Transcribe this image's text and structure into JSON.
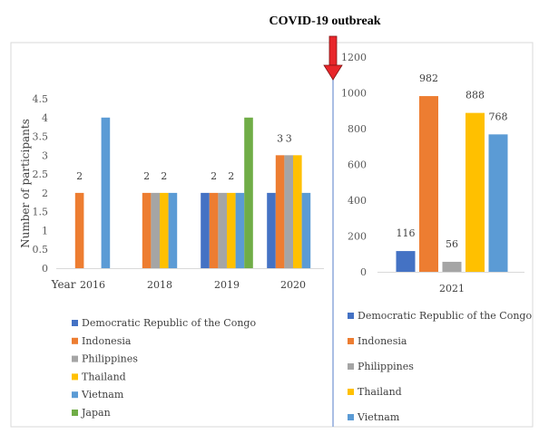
{
  "header": {
    "title": "COVID-19 outbreak"
  },
  "colors": {
    "Democratic Republic of the Congo": "#4472C4",
    "Indonesia": "#ED7D31",
    "Philippines": "#A5A5A5",
    "Thailand": "#FFC000",
    "Vietnam": "#5B9BD5",
    "Japan": "#70AD47",
    "marker": "#E8262A",
    "frame": "#D9D9D9",
    "divider": "#8EA9DB"
  },
  "chart_data": [
    {
      "type": "bar",
      "title": "",
      "xlabel": "Year",
      "ylabel": "Number of participants",
      "categories": [
        "2016",
        "2018",
        "2019",
        "2020"
      ],
      "ylim": [
        0,
        4.5
      ],
      "yticks": [
        "0",
        "0.5",
        "1",
        "1.5",
        "2",
        "2.5",
        "3",
        "3.5",
        "4",
        "4.5"
      ],
      "grid": false,
      "legend": "bottom",
      "series": [
        {
          "name": "Democratic Republic of the Congo",
          "values": [
            null,
            null,
            2,
            2
          ],
          "labels": [
            "",
            "",
            "",
            ""
          ]
        },
        {
          "name": "Indonesia",
          "values": [
            2,
            2,
            2,
            3
          ],
          "labels": [
            "2",
            "2",
            "2",
            "3"
          ]
        },
        {
          "name": "Philippines",
          "values": [
            null,
            2,
            2,
            3
          ],
          "labels": [
            "",
            "",
            "",
            "3"
          ]
        },
        {
          "name": "Thailand",
          "values": [
            null,
            2,
            2,
            3
          ],
          "labels": [
            "",
            "2",
            "2",
            ""
          ]
        },
        {
          "name": "Vietnam",
          "values": [
            4,
            2,
            2,
            2
          ],
          "labels": [
            "",
            "",
            "",
            ""
          ]
        },
        {
          "name": "Japan",
          "values": [
            null,
            null,
            4,
            null
          ],
          "labels": [
            "",
            "",
            "",
            ""
          ]
        }
      ]
    },
    {
      "type": "bar",
      "title": "",
      "xlabel": "",
      "ylabel": "",
      "categories": [
        "2021"
      ],
      "ylim": [
        0,
        1200
      ],
      "yticks": [
        "0",
        "200",
        "400",
        "600",
        "800",
        "1000",
        "1200"
      ],
      "grid": false,
      "legend": "bottom",
      "series": [
        {
          "name": "Democratic Republic of the Congo",
          "values": [
            116
          ],
          "labels": [
            "116"
          ]
        },
        {
          "name": "Indonesia",
          "values": [
            982
          ],
          "labels": [
            "982"
          ]
        },
        {
          "name": "Philippines",
          "values": [
            56
          ],
          "labels": [
            "56"
          ]
        },
        {
          "name": "Thailand",
          "values": [
            888
          ],
          "labels": [
            "888"
          ]
        },
        {
          "name": "Vietnam",
          "values": [
            768
          ],
          "labels": [
            "768"
          ]
        }
      ]
    }
  ]
}
